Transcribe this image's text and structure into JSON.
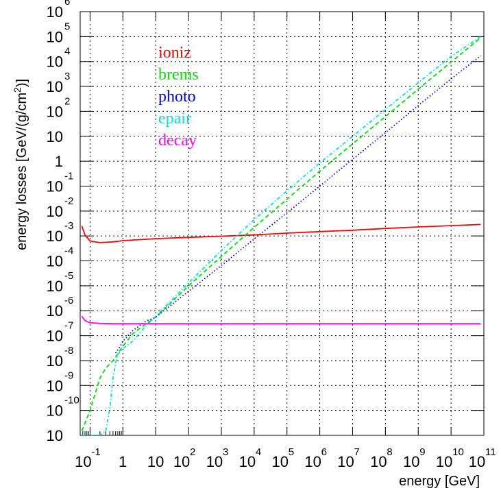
{
  "chart_data": {
    "type": "line",
    "title": "",
    "xlabel": "energy [GeV]",
    "ylabel_parts": {
      "main": "energy losses [GeV/(g/cm",
      "sup": "2",
      "end": ")]"
    },
    "x_scale": "log",
    "y_scale": "log",
    "xlim": [
      0.05,
      100000000000.0
    ],
    "ylim": [
      1e-11,
      1000000.0
    ],
    "grid": true,
    "legend_position": "top-left",
    "x_ticks": [
      {
        "base": "10",
        "exp": "-1"
      },
      {
        "base": "1",
        "exp": ""
      },
      {
        "base": "10",
        "exp": ""
      },
      {
        "base": "10",
        "exp": "2"
      },
      {
        "base": "10",
        "exp": "3"
      },
      {
        "base": "10",
        "exp": "4"
      },
      {
        "base": "10",
        "exp": "5"
      },
      {
        "base": "10",
        "exp": "6"
      },
      {
        "base": "10",
        "exp": "7"
      },
      {
        "base": "10",
        "exp": "8"
      },
      {
        "base": "10",
        "exp": "9"
      },
      {
        "base": "10",
        "exp": "10"
      },
      {
        "base": "10",
        "exp": "11"
      }
    ],
    "y_ticks": [
      {
        "base": "10",
        "exp": "6"
      },
      {
        "base": "10",
        "exp": "5"
      },
      {
        "base": "10",
        "exp": "4"
      },
      {
        "base": "10",
        "exp": "3"
      },
      {
        "base": "10",
        "exp": "2"
      },
      {
        "base": "10",
        "exp": ""
      },
      {
        "base": "1",
        "exp": ""
      },
      {
        "base": "10",
        "exp": "-1"
      },
      {
        "base": "10",
        "exp": "-2"
      },
      {
        "base": "10",
        "exp": "-3"
      },
      {
        "base": "10",
        "exp": "-4"
      },
      {
        "base": "10",
        "exp": "-5"
      },
      {
        "base": "10",
        "exp": "-6"
      },
      {
        "base": "10",
        "exp": "-7"
      },
      {
        "base": "10",
        "exp": "-8"
      },
      {
        "base": "10",
        "exp": "-9"
      },
      {
        "base": "10",
        "exp": "-10"
      },
      {
        "base": "10",
        "exp": ""
      }
    ],
    "series": [
      {
        "name": "ioniz",
        "color": "#ff0000",
        "dash": "solid",
        "x": [
          0.056,
          0.07,
          0.1,
          0.2,
          0.5,
          1,
          10,
          100,
          1000,
          10000,
          100000,
          1000000.0,
          10000000.0,
          100000000.0,
          1000000000.0,
          10000000000.0,
          80000000000.0
        ],
        "y": [
          0.0025,
          0.0011,
          0.00063,
          0.00054,
          0.00058,
          0.00065,
          0.00078,
          0.00088,
          0.00098,
          0.0011,
          0.0013,
          0.0015,
          0.0017,
          0.002,
          0.0023,
          0.0026,
          0.0029
        ]
      },
      {
        "name": "brems",
        "color": "#00dd00",
        "dash": "6,4",
        "x": [
          0.056,
          0.1,
          0.2,
          0.3,
          0.5,
          1,
          2,
          5,
          10,
          100,
          1000,
          10000,
          100000,
          1000000.0,
          10000000.0,
          100000000.0,
          1000000000.0,
          10000000000.0,
          80000000000.0
        ],
        "y": [
          1.5e-11,
          1e-10,
          2e-09,
          5e-09,
          1e-08,
          3.8e-08,
          1.2e-07,
          3e-07,
          5.5e-07,
          1e-05,
          0.00015,
          0.0022,
          0.03,
          0.4,
          5,
          62,
          780,
          9500,
          90000
        ]
      },
      {
        "name": "photo",
        "color": "#0000dd",
        "dash": "1.5,3",
        "x": [
          0.6,
          0.8,
          1,
          2,
          5,
          10,
          100,
          1000,
          10000,
          100000,
          1000000.0,
          10000000.0,
          100000000.0,
          1000000000.0,
          10000000000.0,
          80000000000.0
        ],
        "y": [
          2e-08,
          3.5e-08,
          6e-08,
          1.6e-07,
          3.8e-07,
          5.5e-07,
          6e-06,
          6.5e-05,
          0.00075,
          0.0085,
          0.1,
          1.2,
          14,
          170,
          2000,
          17000
        ]
      },
      {
        "name": "epair",
        "color": "#00dddd",
        "dash": "5,3,1.5,3",
        "x": [
          0.056,
          0.2,
          0.3,
          0.4,
          0.5,
          0.6,
          0.7,
          1,
          2,
          5,
          10,
          100,
          1000,
          10000,
          100000,
          1000000.0,
          10000000.0,
          100000000.0,
          1000000000.0,
          10000000000.0,
          80000000000.0
        ],
        "y": [
          1e-11,
          1e-11,
          1.5e-11,
          1.2e-10,
          2e-09,
          8e-09,
          1.8e-08,
          3e-08,
          6e-08,
          2.5e-07,
          6e-07,
          1.3e-05,
          0.00026,
          0.0045,
          0.065,
          0.85,
          10,
          120,
          1400,
          16000,
          100000
        ]
      },
      {
        "name": "decay",
        "color": "#ff00ff",
        "dash": "solid",
        "x": [
          0.056,
          0.07,
          0.1,
          0.2,
          0.5,
          1,
          10,
          100,
          1000,
          10000.0,
          100000.0,
          1000000.0,
          10000000.0,
          100000000.0,
          1000000000.0,
          10000000000.0,
          80000000000.0
        ],
        "y": [
          6e-07,
          4e-07,
          3.3e-07,
          3.1e-07,
          3e-07,
          3e-07,
          3e-07,
          3e-07,
          3e-07,
          3e-07,
          3e-07,
          3e-07,
          3e-07,
          3e-07,
          3e-07,
          3e-07,
          3e-07
        ]
      }
    ]
  }
}
